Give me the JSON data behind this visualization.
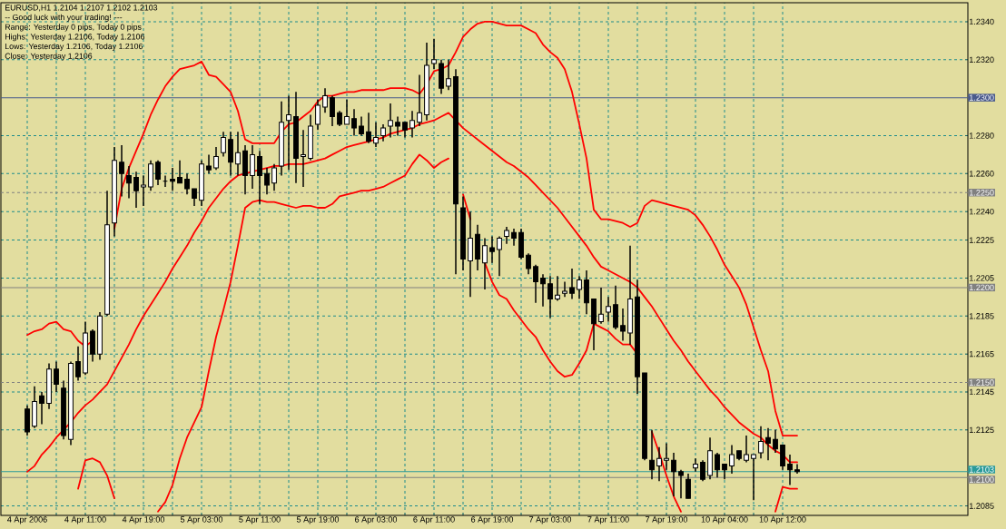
{
  "chart_data": {
    "type": "candlestick",
    "title": "EURUSD,H1  1.2104 1.2107 1.2102 1.2103",
    "annotations": [
      "-- Good luck with your trading! ---",
      "Range: Yesterday 0 pips, Today 0 pips",
      "Highs: Yesterday 1.2106, Today 1.2106",
      "Lows:  Yesterday 1.2106, Today 1.2106",
      "Close: Yesterday 1.2106"
    ],
    "categories": [
      "4 Apr 2006",
      null,
      null,
      null,
      null,
      null,
      null,
      null,
      "4 Apr 11:00",
      null,
      null,
      null,
      null,
      null,
      null,
      null,
      "4 Apr 19:00",
      null,
      null,
      null,
      null,
      null,
      null,
      null,
      "5 Apr 03:00",
      null,
      null,
      null,
      null,
      null,
      null,
      null,
      "5 Apr 11:00",
      null,
      null,
      null,
      null,
      null,
      null,
      null,
      "5 Apr 19:00",
      null,
      null,
      null,
      null,
      null,
      null,
      null,
      "6 Apr 03:00",
      null,
      null,
      null,
      null,
      null,
      null,
      null,
      "6 Apr 11:00",
      null,
      null,
      null,
      null,
      null,
      null,
      null,
      "6 Apr 19:00",
      null,
      null,
      null,
      null,
      null,
      null,
      null,
      "7 Apr 03:00",
      null,
      null,
      null,
      null,
      null,
      null,
      null,
      "7 Apr 11:00",
      null,
      null,
      null,
      null,
      null,
      null,
      null,
      "7 Apr 19:00",
      null,
      null,
      null,
      null,
      null,
      null,
      null,
      "10 Apr 04:00",
      null,
      null,
      null,
      null,
      null,
      null,
      null,
      "10 Apr 12:00",
      null,
      null
    ],
    "ohlc": [
      [
        1.2136,
        1.2138,
        1.2122,
        1.2124
      ],
      [
        1.2127,
        1.2148,
        1.2126,
        1.214
      ],
      [
        1.2143,
        1.2145,
        1.2128,
        1.2139
      ],
      [
        1.2139,
        1.216,
        1.2136,
        1.2157
      ],
      [
        1.2157,
        1.2161,
        1.2145,
        1.2149
      ],
      [
        1.2147,
        1.2151,
        1.212,
        1.2122
      ],
      [
        1.212,
        1.2161,
        1.2117,
        1.216
      ],
      [
        1.2161,
        1.2169,
        1.2151,
        1.2153
      ],
      [
        1.2155,
        1.2182,
        1.2154,
        1.2176
      ],
      [
        1.2177,
        1.2178,
        1.2161,
        1.2165
      ],
      [
        1.2165,
        1.2187,
        1.2162,
        1.2185
      ],
      [
        1.2186,
        1.2251,
        1.2185,
        1.2233
      ],
      [
        1.2234,
        1.2274,
        1.2227,
        1.2267
      ],
      [
        1.2266,
        1.2275,
        1.2248,
        1.226
      ],
      [
        1.2259,
        1.2264,
        1.2247,
        1.2255
      ],
      [
        1.2258,
        1.2261,
        1.2242,
        1.2251
      ],
      [
        1.2253,
        1.2259,
        1.2243,
        1.2254
      ],
      [
        1.2253,
        1.2267,
        1.2251,
        1.2265
      ],
      [
        1.2266,
        1.2267,
        1.2254,
        1.2257
      ],
      [
        1.2256,
        1.2259,
        1.2253,
        1.2256
      ],
      [
        1.2257,
        1.2263,
        1.2251,
        1.2256
      ],
      [
        1.2258,
        1.2267,
        1.2255,
        1.2255
      ],
      [
        1.2257,
        1.226,
        1.2249,
        1.2252
      ],
      [
        1.2252,
        1.2252,
        1.2243,
        1.2247
      ],
      [
        1.2246,
        1.2267,
        1.2243,
        1.2265
      ],
      [
        1.2264,
        1.227,
        1.226,
        1.2262
      ],
      [
        1.2263,
        1.2274,
        1.2262,
        1.2269
      ],
      [
        1.2271,
        1.2282,
        1.2269,
        1.2279
      ],
      [
        1.2278,
        1.2282,
        1.2259,
        1.2266
      ],
      [
        1.2265,
        1.2282,
        1.2259,
        1.2271
      ],
      [
        1.2272,
        1.2275,
        1.2249,
        1.2259
      ],
      [
        1.2259,
        1.2275,
        1.2252,
        1.227
      ],
      [
        1.2269,
        1.2272,
        1.2244,
        1.2259
      ],
      [
        1.226,
        1.2263,
        1.2249,
        1.2254
      ],
      [
        1.2255,
        1.2265,
        1.2251,
        1.2263
      ],
      [
        1.2264,
        1.2298,
        1.2259,
        1.2287
      ],
      [
        1.2288,
        1.2301,
        1.2262,
        1.2291
      ],
      [
        1.229,
        1.2303,
        1.2255,
        1.2268
      ],
      [
        1.2269,
        1.2283,
        1.2253,
        1.227
      ],
      [
        1.2268,
        1.2291,
        1.2267,
        1.2285
      ],
      [
        1.2286,
        1.2299,
        1.2283,
        1.2296
      ],
      [
        1.2295,
        1.2305,
        1.2292,
        1.2301
      ],
      [
        1.23,
        1.2301,
        1.2285,
        1.229
      ],
      [
        1.2292,
        1.2293,
        1.2285,
        1.2286
      ],
      [
        1.2286,
        1.2299,
        1.2286,
        1.229
      ],
      [
        1.2289,
        1.2294,
        1.228,
        1.2284
      ],
      [
        1.2285,
        1.229,
        1.228,
        1.2281
      ],
      [
        1.2282,
        1.2292,
        1.2276,
        1.2277
      ],
      [
        1.2276,
        1.2287,
        1.2274,
        1.2279
      ],
      [
        1.228,
        1.2286,
        1.2277,
        1.2284
      ],
      [
        1.2285,
        1.2297,
        1.2279,
        1.2288
      ],
      [
        1.2287,
        1.229,
        1.228,
        1.2285
      ],
      [
        1.2287,
        1.2287,
        1.2279,
        1.2283
      ],
      [
        1.2284,
        1.2293,
        1.2279,
        1.2288
      ],
      [
        1.2287,
        1.2312,
        1.2285,
        1.2292
      ],
      [
        1.2291,
        1.2329,
        1.2288,
        1.2317
      ],
      [
        1.2318,
        1.2331,
        1.2315,
        1.232
      ],
      [
        1.2318,
        1.232,
        1.2302,
        1.2305
      ],
      [
        1.2306,
        1.232,
        1.2304,
        1.231
      ],
      [
        1.2311,
        1.2315,
        1.2207,
        1.2244
      ],
      [
        1.2242,
        1.2248,
        1.2209,
        1.2215
      ],
      [
        1.2214,
        1.224,
        1.2195,
        1.2226
      ],
      [
        1.2228,
        1.2233,
        1.2209,
        1.2215
      ],
      [
        1.2213,
        1.2226,
        1.2199,
        1.2222
      ],
      [
        1.2221,
        1.2227,
        1.2213,
        1.2219
      ],
      [
        1.222,
        1.2227,
        1.2206,
        1.2226
      ],
      [
        1.2227,
        1.2232,
        1.2223,
        1.223
      ],
      [
        1.2229,
        1.2231,
        1.2222,
        1.2226
      ],
      [
        1.2229,
        1.2231,
        1.2215,
        1.2216
      ],
      [
        1.2217,
        1.2218,
        1.2207,
        1.221
      ],
      [
        1.2211,
        1.2212,
        1.2192,
        1.2203
      ],
      [
        1.2205,
        1.2207,
        1.219,
        1.2202
      ],
      [
        1.2202,
        1.2206,
        1.2184,
        1.2194
      ],
      [
        1.2194,
        1.2206,
        1.2193,
        1.2196
      ],
      [
        1.2197,
        1.2203,
        1.2195,
        1.2198
      ],
      [
        1.22,
        1.221,
        1.2194,
        1.2197
      ],
      [
        1.2199,
        1.2206,
        1.2194,
        1.2204
      ],
      [
        1.2204,
        1.2209,
        1.2186,
        1.2192
      ],
      [
        1.2194,
        1.2194,
        1.2167,
        1.2181
      ],
      [
        1.2182,
        1.22,
        1.2181,
        1.2186
      ],
      [
        1.2187,
        1.2195,
        1.2182,
        1.219
      ],
      [
        1.2191,
        1.2201,
        1.2178,
        1.2179
      ],
      [
        1.218,
        1.2189,
        1.2172,
        1.2177
      ],
      [
        1.2176,
        1.2222,
        1.217,
        1.2194
      ],
      [
        1.2195,
        1.2204,
        1.2144,
        1.2153
      ],
      [
        1.2155,
        1.2155,
        1.2109,
        1.211
      ],
      [
        1.2109,
        1.2125,
        1.2099,
        1.2104
      ],
      [
        1.2106,
        1.2116,
        1.2098,
        1.211
      ],
      [
        1.2109,
        1.2118,
        1.2104,
        1.211
      ],
      [
        1.2109,
        1.2113,
        1.209,
        1.2103
      ],
      [
        1.2103,
        1.2104,
        1.2089,
        1.2101
      ],
      [
        1.2099,
        1.2102,
        1.2089,
        1.2089
      ],
      [
        1.2105,
        1.211,
        1.2103,
        1.2107
      ],
      [
        1.2108,
        1.2109,
        1.2098,
        1.2099
      ],
      [
        1.2101,
        1.2121,
        1.2099,
        1.2114
      ],
      [
        1.2112,
        1.2113,
        1.21,
        1.2104
      ],
      [
        1.2107,
        1.2107,
        1.2099,
        1.2104
      ],
      [
        1.2106,
        1.2117,
        1.2102,
        1.2112
      ],
      [
        1.2114,
        1.2114,
        1.2109,
        1.211
      ],
      [
        1.2109,
        1.2122,
        1.2108,
        1.2112
      ],
      [
        1.211,
        1.2112,
        1.2088,
        1.2112
      ],
      [
        1.2113,
        1.2127,
        1.211,
        1.2119
      ],
      [
        1.2121,
        1.2126,
        1.2109,
        1.2118
      ],
      [
        1.212,
        1.2125,
        1.2113,
        1.2115
      ],
      [
        1.2117,
        1.2117,
        1.2104,
        1.2106
      ],
      [
        1.2107,
        1.2112,
        1.2096,
        1.2104
      ],
      [
        1.2104,
        1.2107,
        1.2102,
        1.2103
      ]
    ],
    "series": [
      {
        "type": "line",
        "color": "#ff0000",
        "values": [
          1.2175,
          1.2177,
          1.2178,
          1.2181,
          1.2182,
          1.2178,
          1.2177,
          1.2172,
          1.2169,
          1.2172,
          null,
          null,
          1.2231,
          1.2252,
          1.2263,
          1.2272,
          1.2281,
          1.2291,
          1.2299,
          1.2306,
          1.2311,
          1.2315,
          1.2316,
          1.2317,
          1.2319,
          1.2312,
          1.2311,
          1.2307,
          1.2303,
          1.2293,
          1.2278,
          1.2276,
          1.2276,
          1.2276,
          1.2276,
          1.2282,
          1.2286,
          1.2287,
          1.229,
          1.2293,
          1.2298,
          1.2301,
          1.2301,
          1.2302,
          1.2303,
          1.2303,
          1.2304,
          1.2304,
          1.2304,
          1.2304,
          1.2305,
          1.2305,
          1.2305,
          1.2304,
          1.2302,
          1.2307,
          1.2314,
          1.2315,
          1.2317,
          1.2324,
          1.2332,
          1.2336,
          1.2339,
          1.234,
          1.234,
          1.2339,
          1.2338,
          1.2338,
          1.2338,
          1.2336,
          1.2334,
          1.2328,
          1.2324,
          1.2321,
          1.2315,
          1.2303,
          1.2286,
          1.2268,
          1.2241,
          1.2236,
          1.2236,
          1.2235,
          1.2234,
          1.2232,
          1.2234,
          1.2243,
          1.2246,
          1.2245,
          1.2244,
          1.2243,
          1.2242,
          1.2241,
          1.2238,
          1.2233,
          1.2227,
          1.222,
          1.2212,
          1.2206,
          1.22,
          1.2191,
          1.2179,
          1.2167,
          1.2156,
          1.2135,
          1.2122,
          1.2122,
          1.2122
        ]
      },
      {
        "type": "line",
        "color": "#ff0000",
        "values": [
          1.2103,
          1.2106,
          1.2112,
          1.2116,
          1.2121,
          1.2125,
          1.2129,
          1.2134,
          1.2138,
          1.2141,
          1.2145,
          1.2149,
          1.2156,
          1.2163,
          1.217,
          1.2178,
          1.2185,
          1.2191,
          1.2197,
          1.2203,
          1.221,
          1.2216,
          1.2222,
          1.2229,
          1.2235,
          1.2242,
          1.2247,
          1.2252,
          1.2256,
          1.2259,
          1.226,
          1.2261,
          1.2262,
          1.2263,
          1.2264,
          1.2264,
          1.2265,
          1.2265,
          1.2265,
          1.2266,
          1.2267,
          1.2268,
          1.227,
          1.2272,
          1.2274,
          1.2275,
          1.2276,
          1.2277,
          1.2278,
          1.2279,
          1.2281,
          1.2282,
          1.2283,
          1.2284,
          1.2286,
          1.2287,
          1.2288,
          1.229,
          1.2292,
          1.2288,
          1.2284,
          1.2281,
          1.2278,
          1.2275,
          1.2272,
          1.2269,
          1.2266,
          1.2264,
          1.2261,
          1.2258,
          1.2254,
          1.225,
          1.2246,
          1.2242,
          1.2237,
          1.2232,
          1.2227,
          1.2222,
          1.2216,
          1.2211,
          1.2209,
          1.2207,
          1.2205,
          1.2203,
          1.22,
          1.2195,
          1.219,
          1.2184,
          1.2178,
          1.2172,
          1.2167,
          1.2161,
          1.2156,
          1.2151,
          1.2146,
          1.2142,
          1.2137,
          1.2133,
          1.2129,
          1.2126,
          1.2123,
          1.2121,
          1.2117,
          1.2114,
          1.2112,
          1.2108,
          1.2108
        ]
      },
      {
        "type": "line",
        "color": "#ff0000",
        "values": [
          null,
          null,
          null,
          null,
          null,
          null,
          null,
          1.2094,
          1.2109,
          1.211,
          1.2108,
          1.2101,
          1.2089,
          null,
          null,
          null,
          null,
          null,
          1.2082,
          1.2087,
          1.2096,
          1.211,
          1.2121,
          1.2129,
          1.2137,
          1.2156,
          1.2174,
          1.2188,
          1.2203,
          1.2222,
          1.2242,
          1.2245,
          1.2246,
          1.2245,
          1.2245,
          1.2244,
          1.2243,
          1.2242,
          1.2243,
          1.2243,
          1.2242,
          1.2242,
          1.2244,
          1.2248,
          1.2249,
          1.225,
          1.2251,
          1.2251,
          1.2252,
          1.2253,
          1.2255,
          1.2257,
          1.2259,
          1.2265,
          1.227,
          1.2267,
          1.2263,
          1.2266,
          1.2268,
          null,
          1.2249,
          1.2236,
          null,
          1.2213,
          1.2203,
          1.2196,
          1.2194,
          1.2188,
          1.2183,
          1.2178,
          1.2174,
          1.2167,
          1.2161,
          1.2156,
          1.2153,
          1.2154,
          1.216,
          1.2167,
          1.2181,
          1.2179,
          1.2177,
          1.2173,
          1.217,
          1.217,
          1.2165,
          null,
          1.2124,
          1.2113,
          1.2101,
          1.209,
          1.2082,
          null,
          null,
          null,
          null,
          null,
          null,
          null,
          null,
          null,
          null,
          null,
          null,
          1.2082,
          1.2095,
          1.2094,
          1.2094
        ]
      }
    ],
    "ylim": [
      1.208,
      1.235
    ],
    "yticks": [
      {
        "value": 1.234,
        "label": "1.2340"
      },
      {
        "value": 1.232,
        "label": "1.2320"
      },
      {
        "value": 1.228,
        "label": "1.2280"
      },
      {
        "value": 1.226,
        "label": "1.2260"
      },
      {
        "value": 1.224,
        "label": "1.2240"
      },
      {
        "value": 1.2225,
        "label": "1.2225"
      },
      {
        "value": 1.2205,
        "label": "1.2205"
      },
      {
        "value": 1.2185,
        "label": "1.2185"
      },
      {
        "value": 1.2165,
        "label": "1.2165"
      },
      {
        "value": 1.2145,
        "label": "1.2145"
      },
      {
        "value": 1.2125,
        "label": "1.2125"
      },
      {
        "value": 1.2085,
        "label": "1.2085"
      }
    ],
    "ref_lines": [
      {
        "axis": "y",
        "value": 1.23,
        "label": "1.2300",
        "color": "#4a5a8c",
        "line_style": "solid"
      },
      {
        "axis": "y",
        "value": 1.225,
        "label": "1.2250",
        "color": "#808080",
        "line_style": "dashed"
      },
      {
        "axis": "y",
        "value": 1.22,
        "label": "1.2200",
        "color": "#808080",
        "line_style": "solid"
      },
      {
        "axis": "y",
        "value": 1.215,
        "label": "1.2150",
        "color": "#808080",
        "line_style": "dashed"
      },
      {
        "axis": "y",
        "value": 1.2103,
        "label": "1.2103",
        "color": "#2a9a9a",
        "line_style": "solid"
      },
      {
        "axis": "y",
        "value": 1.21,
        "label": "1.2100",
        "color": "#808080",
        "line_style": "solid"
      }
    ],
    "grid": true
  }
}
